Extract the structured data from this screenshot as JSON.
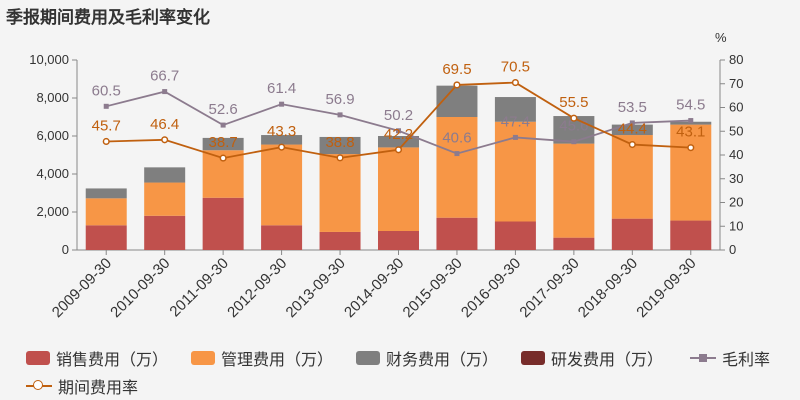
{
  "title": "季报期间费用及毛利率变化",
  "chart_data": {
    "type": "bar",
    "stacked": true,
    "categories": [
      "2009-09-30",
      "2010-09-30",
      "2011-09-30",
      "2012-09-30",
      "2013-09-30",
      "2014-09-30",
      "2015-09-30",
      "2016-09-30",
      "2017-09-30",
      "2018-09-30",
      "2019-09-30"
    ],
    "y_left": {
      "ylim": [
        0,
        10000
      ],
      "ticks": [
        "0",
        "2,000",
        "4,000",
        "6,000",
        "8,000",
        "10,000"
      ],
      "tick_values": [
        0,
        2000,
        4000,
        6000,
        8000,
        10000
      ]
    },
    "y_right": {
      "label": "%",
      "ylim": [
        0,
        80
      ],
      "ticks": [
        "0",
        "10",
        "20",
        "30",
        "40",
        "50",
        "60",
        "70",
        "80"
      ],
      "tick_values": [
        0,
        10,
        20,
        30,
        40,
        50,
        60,
        70,
        80
      ]
    },
    "bar_series": [
      {
        "name": "销售费用（万）",
        "color": "#c0504d",
        "values": [
          1300,
          1800,
          2750,
          1300,
          950,
          1000,
          1700,
          1500,
          650,
          1650,
          1550
        ]
      },
      {
        "name": "管理费用（万）",
        "color": "#f79646",
        "values": [
          1420,
          1750,
          2500,
          4250,
          4100,
          4400,
          5300,
          5250,
          4950,
          4400,
          5050
        ]
      },
      {
        "name": "财务费用（万）",
        "color": "#7f7f7f",
        "values": [
          520,
          800,
          650,
          500,
          900,
          600,
          1650,
          1300,
          1450,
          550,
          150
        ]
      },
      {
        "name": "研发费用（万）",
        "color": "#772c2a",
        "values": [
          0,
          0,
          0,
          0,
          0,
          0,
          0,
          0,
          0,
          0,
          0
        ]
      }
    ],
    "line_series": [
      {
        "name": "毛利率",
        "color": "#8c7b8e",
        "label_color": "#8c7b8e",
        "values": [
          60.5,
          66.7,
          52.6,
          61.4,
          56.9,
          50.2,
          40.6,
          47.4,
          45.6,
          53.5,
          54.5
        ],
        "labels": [
          "60.5",
          "66.7",
          "52.6",
          "61.4",
          "56.9",
          "50.2",
          "40.6",
          "47.4",
          "45.6",
          "53.5",
          "54.5"
        ]
      },
      {
        "name": "期间费用率",
        "color": "#c0600f",
        "label_color": "#c0600f",
        "values": [
          45.7,
          46.4,
          38.7,
          43.3,
          38.8,
          42.2,
          69.5,
          70.5,
          55.5,
          44.4,
          43.1
        ],
        "labels": [
          "45.7",
          "46.4",
          "38.7",
          "43.3",
          "38.8",
          "42.2",
          "69.5",
          "70.5",
          "55.5",
          "44.4",
          "43.1"
        ]
      }
    ],
    "grid": false,
    "legend_position": "bottom"
  }
}
